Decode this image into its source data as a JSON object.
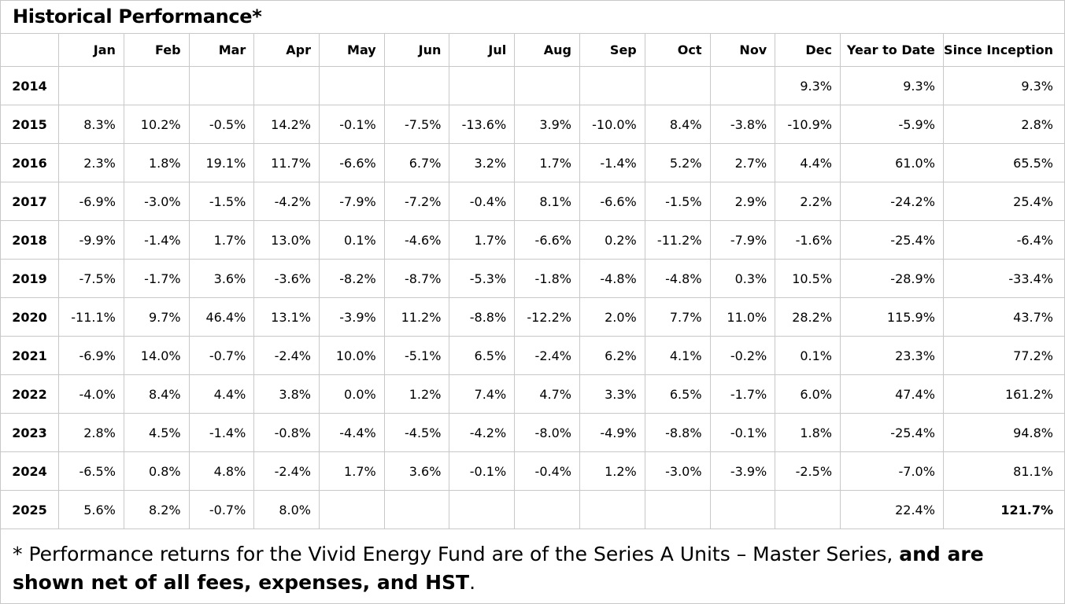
{
  "title": "Historical Performance*",
  "table": {
    "headers": [
      "",
      "Jan",
      "Feb",
      "Mar",
      "Apr",
      "May",
      "Jun",
      "Jul",
      "Aug",
      "Sep",
      "Oct",
      "Nov",
      "Dec",
      "Year to Date",
      "Since Inception"
    ],
    "rows": [
      {
        "year": "2014",
        "cells": [
          "",
          "",
          "",
          "",
          "",
          "",
          "",
          "",
          "",
          "",
          "",
          "9.3%",
          "9.3%",
          "9.3%"
        ]
      },
      {
        "year": "2015",
        "cells": [
          "8.3%",
          "10.2%",
          "-0.5%",
          "14.2%",
          "-0.1%",
          "-7.5%",
          "-13.6%",
          "3.9%",
          "-10.0%",
          "8.4%",
          "-3.8%",
          "-10.9%",
          "-5.9%",
          "2.8%"
        ]
      },
      {
        "year": "2016",
        "cells": [
          "2.3%",
          "1.8%",
          "19.1%",
          "11.7%",
          "-6.6%",
          "6.7%",
          "3.2%",
          "1.7%",
          "-1.4%",
          "5.2%",
          "2.7%",
          "4.4%",
          "61.0%",
          "65.5%"
        ]
      },
      {
        "year": "2017",
        "cells": [
          "-6.9%",
          "-3.0%",
          "-1.5%",
          "-4.2%",
          "-7.9%",
          "-7.2%",
          "-0.4%",
          "8.1%",
          "-6.6%",
          "-1.5%",
          "2.9%",
          "2.2%",
          "-24.2%",
          "25.4%"
        ]
      },
      {
        "year": "2018",
        "cells": [
          "-9.9%",
          "-1.4%",
          "1.7%",
          "13.0%",
          "0.1%",
          "-4.6%",
          "1.7%",
          "-6.6%",
          "0.2%",
          "-11.2%",
          "-7.9%",
          "-1.6%",
          "-25.4%",
          "-6.4%"
        ]
      },
      {
        "year": "2019",
        "cells": [
          "-7.5%",
          "-1.7%",
          "3.6%",
          "-3.6%",
          "-8.2%",
          "-8.7%",
          "-5.3%",
          "-1.8%",
          "-4.8%",
          "-4.8%",
          "0.3%",
          "10.5%",
          "-28.9%",
          "-33.4%"
        ]
      },
      {
        "year": "2020",
        "cells": [
          "-11.1%",
          "9.7%",
          "46.4%",
          "13.1%",
          "-3.9%",
          "11.2%",
          "-8.8%",
          "-12.2%",
          "2.0%",
          "7.7%",
          "11.0%",
          "28.2%",
          "115.9%",
          "43.7%"
        ]
      },
      {
        "year": "2021",
        "cells": [
          "-6.9%",
          "14.0%",
          "-0.7%",
          "-2.4%",
          "10.0%",
          "-5.1%",
          "6.5%",
          "-2.4%",
          "6.2%",
          "4.1%",
          "-0.2%",
          "0.1%",
          "23.3%",
          "77.2%"
        ]
      },
      {
        "year": "2022",
        "cells": [
          "-4.0%",
          "8.4%",
          "4.4%",
          "3.8%",
          "0.0%",
          "1.2%",
          "7.4%",
          "4.7%",
          "3.3%",
          "6.5%",
          "-1.7%",
          "6.0%",
          "47.4%",
          "161.2%"
        ]
      },
      {
        "year": "2023",
        "cells": [
          "2.8%",
          "4.5%",
          "-1.4%",
          "-0.8%",
          "-4.4%",
          "-4.5%",
          "-4.2%",
          "-8.0%",
          "-4.9%",
          "-8.8%",
          "-0.1%",
          "1.8%",
          "-25.4%",
          "94.8%"
        ]
      },
      {
        "year": "2024",
        "cells": [
          "-6.5%",
          "0.8%",
          "4.8%",
          "-2.4%",
          "1.7%",
          "3.6%",
          "-0.1%",
          "-0.4%",
          "1.2%",
          "-3.0%",
          "-3.9%",
          "-2.5%",
          "-7.0%",
          "81.1%"
        ]
      },
      {
        "year": "2025",
        "cells": [
          "5.6%",
          "8.2%",
          "-0.7%",
          "8.0%",
          "",
          "",
          "",
          "",
          "",
          "",
          "",
          "",
          "22.4%",
          "121.7%"
        ],
        "bold_last": true
      }
    ]
  },
  "footnote": {
    "plain": "* Performance returns for the Vivid Energy Fund are of the Series A Units – Master Series, ",
    "bold": "and are shown net of all fees, expenses, and HST",
    "end": "."
  }
}
